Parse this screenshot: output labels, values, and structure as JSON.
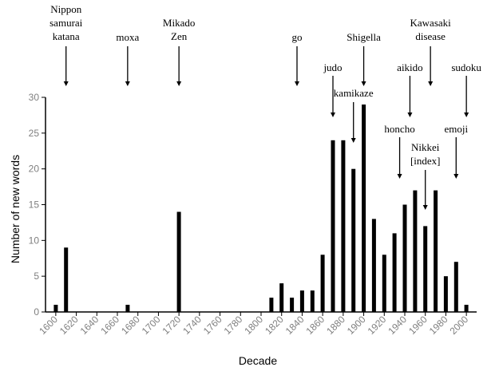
{
  "chart_data": {
    "type": "bar",
    "title": "",
    "xlabel": "Decade",
    "ylabel": "Number of new words",
    "ylim": [
      0,
      30
    ],
    "yticks": [
      0,
      5,
      10,
      15,
      20,
      25,
      30
    ],
    "xticks": [
      1600,
      1620,
      1640,
      1660,
      1680,
      1700,
      1720,
      1740,
      1760,
      1780,
      1800,
      1820,
      1840,
      1860,
      1880,
      1900,
      1920,
      1940,
      1960,
      1980,
      2000
    ],
    "x_range": [
      1590,
      2010
    ],
    "bar_color": "#000000",
    "grid": false,
    "legend": "none",
    "bars": [
      {
        "x": 1600,
        "value": 1
      },
      {
        "x": 1610,
        "value": 9
      },
      {
        "x": 1670,
        "value": 1
      },
      {
        "x": 1720,
        "value": 14
      },
      {
        "x": 1810,
        "value": 2
      },
      {
        "x": 1820,
        "value": 4
      },
      {
        "x": 1830,
        "value": 2
      },
      {
        "x": 1840,
        "value": 3
      },
      {
        "x": 1850,
        "value": 3
      },
      {
        "x": 1860,
        "value": 8
      },
      {
        "x": 1870,
        "value": 24
      },
      {
        "x": 1880,
        "value": 24
      },
      {
        "x": 1890,
        "value": 20
      },
      {
        "x": 1900,
        "value": 29
      },
      {
        "x": 1910,
        "value": 13
      },
      {
        "x": 1920,
        "value": 8
      },
      {
        "x": 1930,
        "value": 11
      },
      {
        "x": 1940,
        "value": 15
      },
      {
        "x": 1950,
        "value": 17
      },
      {
        "x": 1960,
        "value": 12
      },
      {
        "x": 1970,
        "value": 17
      },
      {
        "x": 1980,
        "value": 5
      },
      {
        "x": 1990,
        "value": 7
      },
      {
        "x": 2000,
        "value": 1
      }
    ],
    "annotations": [
      {
        "lines": [
          "Nippon",
          "samurai",
          "katana"
        ],
        "x": 1610
      },
      {
        "lines": [
          "moxa"
        ],
        "x": 1670
      },
      {
        "lines": [
          "Mikado",
          "Zen"
        ],
        "x": 1720
      },
      {
        "lines": [
          "go"
        ],
        "x": 1835
      },
      {
        "lines": [
          "judo"
        ],
        "x": 1870
      },
      {
        "lines": [
          "Shigella"
        ],
        "x": 1900
      },
      {
        "lines": [
          "kamikaze"
        ],
        "x": 1890
      },
      {
        "lines": [
          "aikido"
        ],
        "x": 1945
      },
      {
        "lines": [
          "Kawasaki",
          "disease"
        ],
        "x": 1965
      },
      {
        "lines": [
          "sudoku"
        ],
        "x": 2000
      },
      {
        "lines": [
          "honcho"
        ],
        "x": 1935
      },
      {
        "lines": [
          "Nikkei",
          "[index]"
        ],
        "x": 1960
      },
      {
        "lines": [
          "emoji"
        ],
        "x": 1990
      }
    ]
  }
}
